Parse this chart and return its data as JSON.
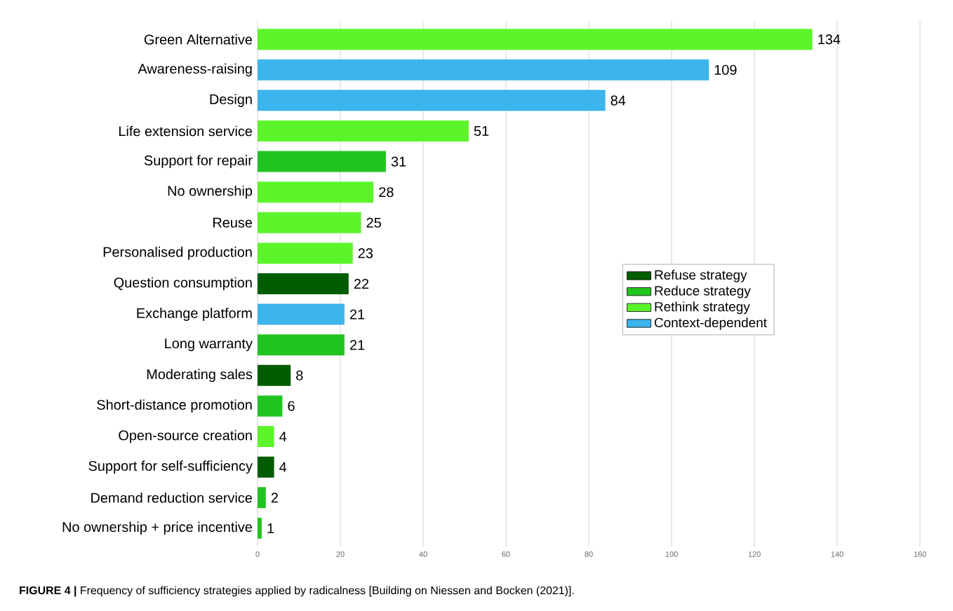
{
  "chart_data": {
    "type": "bar",
    "orientation": "horizontal",
    "categories": [
      "Green Alternative",
      "Awareness-raising",
      "Design",
      "Life extension service",
      "Support for repair",
      "No ownership",
      "Reuse",
      "Personalised production",
      "Question consumption",
      "Exchange platform",
      "Long warranty",
      "Moderating sales",
      "Short-distance promotion",
      "Open-source creation",
      "Support for self-sufficiency",
      "Demand reduction service",
      "No ownership + price incentive"
    ],
    "series": [
      {
        "name": "Refuse strategy",
        "color": "#005c00",
        "values": [
          null,
          null,
          null,
          null,
          null,
          null,
          null,
          null,
          22,
          null,
          null,
          8,
          null,
          null,
          4,
          null,
          null
        ]
      },
      {
        "name": "Reduce strategy",
        "color": "#22c422",
        "values": [
          null,
          null,
          null,
          null,
          31,
          null,
          null,
          null,
          null,
          null,
          21,
          null,
          6,
          null,
          null,
          2,
          1
        ]
      },
      {
        "name": "Rethink strategy",
        "color": "#5cf52c",
        "values": [
          134,
          null,
          null,
          51,
          null,
          28,
          25,
          23,
          null,
          null,
          null,
          null,
          null,
          4,
          null,
          null,
          null
        ]
      },
      {
        "name": "Context-dependent",
        "color": "#3cb4ec",
        "values": [
          null,
          109,
          84,
          null,
          null,
          null,
          null,
          null,
          null,
          21,
          null,
          null,
          null,
          null,
          null,
          null,
          null
        ]
      }
    ],
    "xlim": [
      0,
      160
    ],
    "xticks": [
      0,
      20,
      40,
      60,
      80,
      100,
      120,
      140,
      160
    ],
    "grid": "x",
    "legend": "right",
    "data_labels": true,
    "annotations": [
      "**FIGURE 4 |** Frequency of sufficiency strategies applied by radicalness [Building on Niessen and Bocken (2021)]."
    ]
  }
}
